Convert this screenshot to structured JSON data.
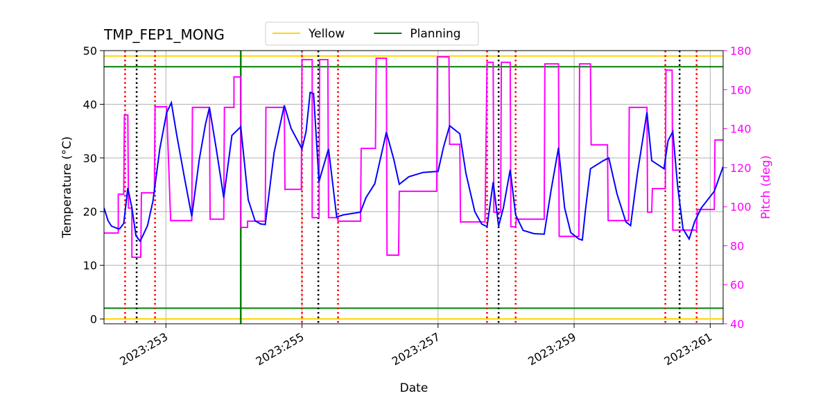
{
  "chart_data": {
    "type": "line",
    "title": "TMP_FEP1_MONG",
    "x_label": "Date",
    "y_label": "Temperature (°C)",
    "y2_label": "Pitch (deg)",
    "xlim": [
      252.09,
      261.19
    ],
    "xticks": [
      {
        "value": 253,
        "label": "2023:253"
      },
      {
        "value": 255,
        "label": "2023:255"
      },
      {
        "value": 257,
        "label": "2023:257"
      },
      {
        "value": 259,
        "label": "2023:259"
      },
      {
        "value": 261,
        "label": "2023:261"
      }
    ],
    "ylim": [
      -0.9,
      50
    ],
    "yticks": [
      0,
      10,
      20,
      30,
      40,
      50
    ],
    "y2lim": [
      40,
      180
    ],
    "y2ticks": [
      40,
      60,
      80,
      100,
      120,
      140,
      160,
      180
    ],
    "y2_color": "#ff00ff",
    "grid": true,
    "limits": [
      {
        "name": "Yellow",
        "color": "#ffd700",
        "values": [
          0,
          49
        ]
      },
      {
        "name": "Planning",
        "color": "#008000",
        "values": [
          2,
          47
        ]
      }
    ],
    "vlines": [
      {
        "color": "#ff0000",
        "style": "dotted",
        "x": [
          252.4,
          252.84,
          255.0,
          255.53,
          257.72,
          258.14,
          260.34,
          260.8
        ]
      },
      {
        "color": "#000000",
        "style": "dotted",
        "x": [
          252.57,
          255.24,
          257.89,
          260.55
        ]
      },
      {
        "color": "#008000",
        "style": "solid",
        "x": [
          254.1
        ]
      }
    ],
    "series": [
      {
        "color": "#ff00ff",
        "axis": "y2",
        "x": [
          252.09,
          252.3,
          252.3,
          252.38,
          252.39,
          252.44,
          252.45,
          252.5,
          252.5,
          252.63,
          252.64,
          252.83,
          252.84,
          253.01,
          253.07,
          253.38,
          253.39,
          253.64,
          253.65,
          253.85,
          253.86,
          254.0,
          254.0,
          254.1,
          254.1,
          254.2,
          254.2,
          254.46,
          254.47,
          254.74,
          254.75,
          254.99,
          255.0,
          255.15,
          255.15,
          255.25,
          255.26,
          255.38,
          255.39,
          255.52,
          255.53,
          255.86,
          255.87,
          256.08,
          256.09,
          256.24,
          256.25,
          256.42,
          256.43,
          256.98,
          256.99,
          257.16,
          257.17,
          257.32,
          257.33,
          257.69,
          257.72,
          257.81,
          257.82,
          257.92,
          257.93,
          258.06,
          258.07,
          258.14,
          258.15,
          258.56,
          258.57,
          258.77,
          258.78,
          259.07,
          259.08,
          259.24,
          259.25,
          259.49,
          259.5,
          259.8,
          259.81,
          260.07,
          260.08,
          260.14,
          260.15,
          260.34,
          260.35,
          260.44,
          260.45,
          260.8,
          260.81,
          261.06,
          261.07,
          261.19
        ],
        "values": [
          86.5,
          86.5,
          106.4,
          106.4,
          147,
          147,
          99.3,
          99.3,
          74.1,
          74.1,
          107.1,
          107.1,
          151.2,
          151.2,
          92.9,
          92.9,
          150.9,
          150.9,
          93.6,
          93.6,
          150.9,
          150.9,
          166.5,
          166.5,
          89.4,
          89.4,
          92.6,
          92.6,
          150.9,
          150.9,
          108.9,
          108.9,
          175.4,
          175.4,
          94.4,
          94.4,
          175.4,
          175.4,
          94.4,
          94.4,
          92.6,
          92.6,
          129.9,
          129.9,
          176.1,
          176.1,
          75.2,
          75.2,
          107.9,
          107.9,
          176.8,
          176.8,
          132,
          132,
          92.2,
          92.2,
          174,
          174,
          97.2,
          97.2,
          174,
          174,
          89.7,
          89.7,
          93.6,
          93.6,
          173.2,
          173.2,
          84.8,
          84.8,
          173.2,
          173.2,
          131.7,
          131.7,
          92.9,
          92.9,
          150.9,
          150.9,
          97.2,
          97.2,
          109.3,
          109.3,
          170,
          170,
          88,
          88,
          98.6,
          98.6,
          134.2,
          134.2
        ]
      },
      {
        "color": "#0000ff",
        "x": [
          252.09,
          252.15,
          252.2,
          252.3,
          252.32,
          252.38,
          252.44,
          252.5,
          252.56,
          252.62,
          252.66,
          252.73,
          252.81,
          252.91,
          253.01,
          253.08,
          253.16,
          253.27,
          253.38,
          253.49,
          253.58,
          253.64,
          253.74,
          253.85,
          253.97,
          254.1,
          254.21,
          254.31,
          254.39,
          254.46,
          254.59,
          254.74,
          254.84,
          255.0,
          255.06,
          255.12,
          255.17,
          255.25,
          255.39,
          255.51,
          255.61,
          255.86,
          255.94,
          256.07,
          256.24,
          256.35,
          256.43,
          256.57,
          256.78,
          257.0,
          257.08,
          257.17,
          257.32,
          257.41,
          257.54,
          257.64,
          257.72,
          257.81,
          257.89,
          257.96,
          258.06,
          258.14,
          258.25,
          258.41,
          258.56,
          258.66,
          258.77,
          258.86,
          258.95,
          259.07,
          259.12,
          259.17,
          259.24,
          259.43,
          259.51,
          259.63,
          259.76,
          259.83,
          259.93,
          260.07,
          260.14,
          260.32,
          260.38,
          260.45,
          260.52,
          260.6,
          260.69,
          260.77,
          260.87,
          261.06,
          261.19
        ],
        "values": [
          20.7,
          18.3,
          17.3,
          16.8,
          16.8,
          17.8,
          24.4,
          20.7,
          15.5,
          14.5,
          15.5,
          17.4,
          22,
          31.7,
          38.4,
          40.3,
          34.2,
          26.5,
          19.1,
          29.7,
          36.2,
          39.4,
          31.7,
          22.6,
          34.2,
          35.8,
          22.2,
          18.3,
          17.7,
          17.6,
          31,
          39.8,
          35.5,
          31.7,
          34.9,
          42.2,
          42,
          25.6,
          31.7,
          19,
          19.4,
          19.9,
          22.6,
          25.2,
          34.8,
          29.7,
          25.1,
          26.5,
          27.3,
          27.5,
          32,
          36,
          34.5,
          27.1,
          20,
          17.7,
          17.2,
          25.5,
          17.3,
          20.7,
          27.8,
          19.4,
          16.5,
          15.9,
          15.8,
          23.9,
          31.9,
          20.7,
          16.1,
          14.9,
          14.7,
          20.7,
          28,
          29.5,
          30,
          23.3,
          18.1,
          17.4,
          27.1,
          38.5,
          29.5,
          28,
          33.2,
          34.9,
          24.9,
          16.8,
          14.9,
          18.1,
          20.7,
          23.8,
          28.4
        ]
      }
    ]
  }
}
